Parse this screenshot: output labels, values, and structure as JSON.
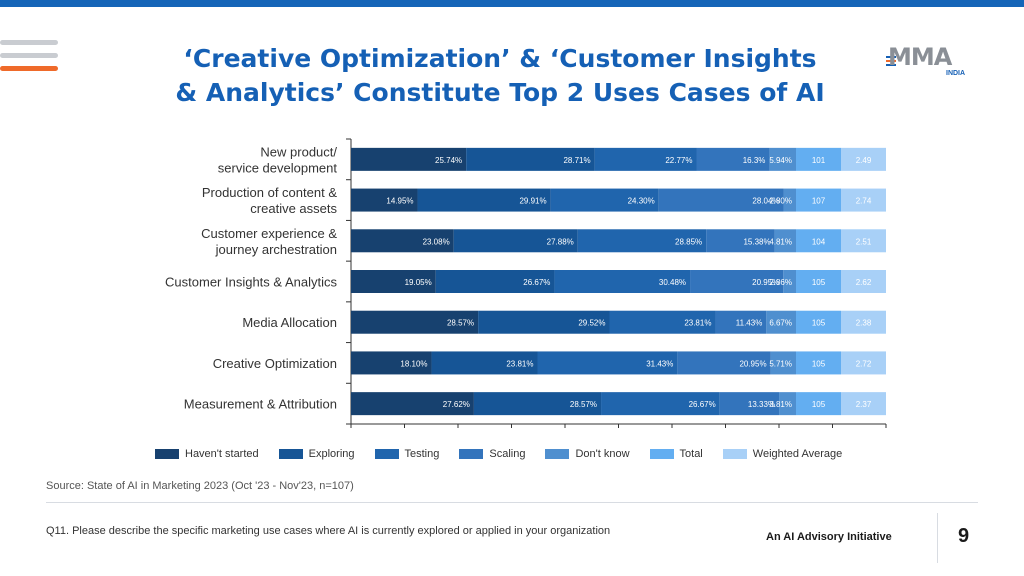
{
  "header": {
    "title_line1": "‘Creative Optimization’ & ‘Customer Insights",
    "title_line2": "& Analytics’ Constitute Top 2 Uses Cases of AI",
    "logo_text": "MMA",
    "logo_sub": "INDIA"
  },
  "colors": {
    "accent": "#1560b5",
    "topbar": "#1565b8",
    "menu_lines": [
      "#c9ccd1",
      "#c9ccd1",
      "#ef6a2a"
    ]
  },
  "chart_data": {
    "type": "bar",
    "orientation": "horizontal-stacked",
    "categories": [
      [
        "New product/",
        "service development"
      ],
      [
        "Production of content &",
        "creative assets"
      ],
      [
        "Customer experience &",
        "journey archestration"
      ],
      [
        "Customer Insights & Analytics"
      ],
      [
        "Media Allocation"
      ],
      [
        "Creative Optimization"
      ],
      [
        "Measurement & Attribution"
      ]
    ],
    "series": [
      {
        "name": "Haven't started",
        "color": "#17416f",
        "values": [
          25.74,
          14.95,
          23.08,
          19.05,
          28.57,
          18.1,
          27.62
        ],
        "labels": [
          "25.74%",
          "14.95%",
          "23.08%",
          "19.05%",
          "28.57%",
          "18.10%",
          "27.62%"
        ]
      },
      {
        "name": "Exploring",
        "color": "#165596",
        "values": [
          28.71,
          29.91,
          27.88,
          26.67,
          29.52,
          23.81,
          28.57
        ],
        "labels": [
          "28.71%",
          "29.91%",
          "27.88%",
          "26.67%",
          "29.52%",
          "23.81%",
          "28.57%"
        ]
      },
      {
        "name": "Testing",
        "color": "#2065ad",
        "values": [
          22.77,
          24.3,
          28.85,
          30.48,
          23.81,
          31.43,
          26.67
        ],
        "labels": [
          "22.77%",
          "24.30%",
          "28.85%",
          "30.48%",
          "23.81%",
          "31.43%",
          "26.67%"
        ]
      },
      {
        "name": "Scaling",
        "color": "#3374bc",
        "values": [
          16.3,
          28.04,
          15.38,
          20.95,
          11.43,
          20.95,
          13.33
        ],
        "labels": [
          "16.3%",
          "28.04%",
          "15.38%",
          "20.95%",
          "11.43%",
          "20.95%",
          "13.33%"
        ]
      },
      {
        "name": "Don't know",
        "color": "#4f8fcf",
        "values": [
          5.94,
          2.8,
          4.81,
          2.86,
          6.67,
          5.71,
          3.81
        ],
        "labels": [
          "5.94%",
          "2.80%",
          "4.81%",
          "2.86%",
          "6.67%",
          "5.71%",
          "3.81%"
        ]
      },
      {
        "name": "Total",
        "color": "#63aef1",
        "values": [
          101,
          107,
          104,
          105,
          105,
          105,
          105
        ],
        "labels": [
          "101",
          "107",
          "104",
          "105",
          "105",
          "105",
          "105"
        ]
      },
      {
        "name": "Weighted Average",
        "color": "#a8d0f7",
        "values": [
          2.49,
          2.74,
          2.51,
          2.62,
          2.38,
          2.72,
          2.37
        ],
        "labels": [
          "2.49",
          "2.74",
          "2.51",
          "2.62",
          "2.38",
          "2.72",
          "2.37"
        ]
      }
    ],
    "legend_position": "bottom",
    "grid": false
  },
  "footer": {
    "source": "Source: State of AI in Marketing 2023 (Oct '23 - Nov'23, n=107)",
    "question": "Q11. Please describe the specific marketing use cases where AI is currently explored or applied in your organization",
    "advisory": "An AI Advisory Initiative",
    "page_number": "9"
  }
}
